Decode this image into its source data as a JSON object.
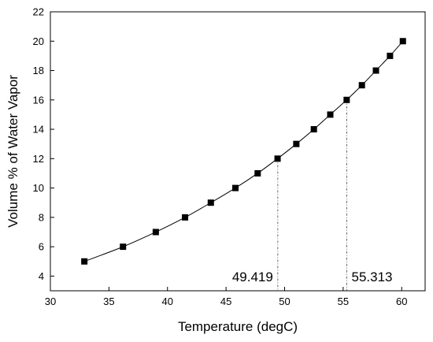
{
  "chart_data": {
    "type": "scatter",
    "xlabel": "Temperature (degC)",
    "ylabel": "Volume % of Water Vapor",
    "xlim": [
      30,
      62
    ],
    "ylim": [
      3,
      22
    ],
    "xticks": [
      30,
      35,
      40,
      45,
      50,
      55,
      60
    ],
    "yticks": [
      4,
      6,
      8,
      10,
      12,
      14,
      16,
      18,
      20,
      22
    ],
    "grid": false,
    "series": [
      {
        "marker": "square",
        "line": "smooth",
        "color": "#000000",
        "points": [
          {
            "x": 32.9,
            "y": 5
          },
          {
            "x": 36.2,
            "y": 6
          },
          {
            "x": 39.0,
            "y": 7
          },
          {
            "x": 41.5,
            "y": 8
          },
          {
            "x": 43.7,
            "y": 9
          },
          {
            "x": 45.8,
            "y": 10
          },
          {
            "x": 47.7,
            "y": 11
          },
          {
            "x": 49.4,
            "y": 12
          },
          {
            "x": 51.0,
            "y": 13
          },
          {
            "x": 52.5,
            "y": 14
          },
          {
            "x": 53.9,
            "y": 15
          },
          {
            "x": 55.3,
            "y": 16
          },
          {
            "x": 56.6,
            "y": 17
          },
          {
            "x": 57.8,
            "y": 18
          },
          {
            "x": 59.0,
            "y": 19
          },
          {
            "x": 60.1,
            "y": 20
          }
        ]
      }
    ],
    "annotations": [
      {
        "text": "49.419",
        "x": 49.419,
        "y": 12,
        "style": "dashed-dropline"
      },
      {
        "text": "55.313",
        "x": 55.313,
        "y": 16,
        "style": "dashed-dropline"
      }
    ]
  }
}
